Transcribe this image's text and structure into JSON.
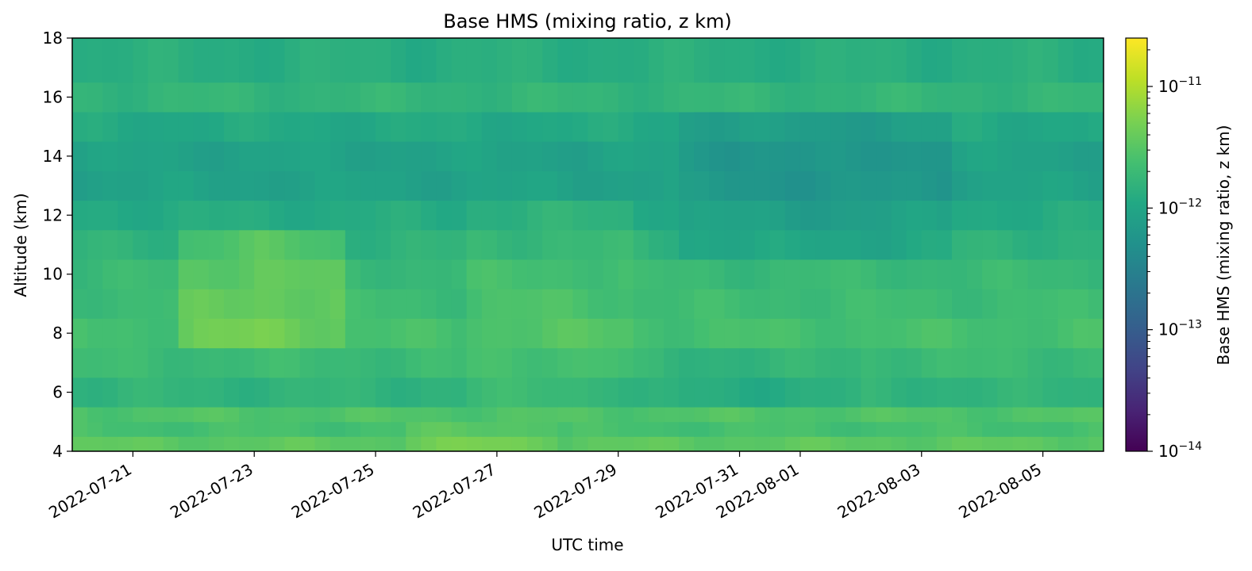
{
  "chart_data": {
    "type": "heatmap",
    "title": "Base HMS (mixing ratio, z km)",
    "xlabel": "UTC time",
    "ylabel": "Altitude (km)",
    "x_ticks": [
      "2022-07-21",
      "2022-07-23",
      "2022-07-25",
      "2022-07-27",
      "2022-07-29",
      "2022-07-31",
      "2022-08-01",
      "2022-08-03",
      "2022-08-05"
    ],
    "xlim": [
      "2022-07-20",
      "2022-08-06"
    ],
    "y_ticks": [
      4,
      6,
      8,
      10,
      12,
      14,
      16,
      18
    ],
    "ylim": [
      4,
      18
    ],
    "colorbar": {
      "label": "Base HMS (mixing ratio, z km)",
      "scale": "log",
      "colormap": "viridis",
      "range": [
        1e-14,
        2.5e-11
      ],
      "ticks": [
        {
          "base": "10",
          "exp": "−11",
          "value": 1e-11
        },
        {
          "base": "10",
          "exp": "−12",
          "value": 1e-12
        },
        {
          "base": "10",
          "exp": "−13",
          "value": 1e-13
        },
        {
          "base": "10",
          "exp": "−14",
          "value": 1e-14
        }
      ]
    },
    "grid": false,
    "approx_exponent_range": [
      -12.35,
      -11.25
    ],
    "altitude_bands_km": [
      {
        "y0": 4.0,
        "y1": 4.5,
        "mean": -11.47
      },
      {
        "y0": 4.5,
        "y1": 5.0,
        "mean": -11.62
      },
      {
        "y0": 5.0,
        "y1": 5.5,
        "mean": -11.55
      },
      {
        "y0": 5.5,
        "y1": 6.5,
        "mean": -11.8
      },
      {
        "y0": 6.5,
        "y1": 7.5,
        "mean": -11.7
      },
      {
        "y0": 7.5,
        "y1": 8.5,
        "mean": -11.62
      },
      {
        "y0": 8.5,
        "y1": 9.5,
        "mean": -11.68
      },
      {
        "y0": 9.5,
        "y1": 10.5,
        "mean": -11.72
      },
      {
        "y0": 10.5,
        "y1": 11.5,
        "mean": -11.82
      },
      {
        "y0": 11.5,
        "y1": 12.5,
        "mean": -11.92
      },
      {
        "y0": 12.5,
        "y1": 13.5,
        "mean": -12.05
      },
      {
        "y0": 13.5,
        "y1": 14.5,
        "mean": -12.05
      },
      {
        "y0": 14.5,
        "y1": 15.5,
        "mean": -11.95
      },
      {
        "y0": 15.5,
        "y1": 16.5,
        "mean": -11.78
      },
      {
        "y0": 16.5,
        "y1": 18.0,
        "mean": -11.88
      }
    ],
    "features": [
      {
        "t0": "2022-07-21T18:00",
        "t1": "2022-07-24T12:00",
        "z0": 7.5,
        "z1": 11.0,
        "delta": 0.3
      },
      {
        "t0": "2022-07-25T12:00",
        "t1": "2022-07-28T00:00",
        "z0": 4.0,
        "z1": 5.0,
        "delta": 0.15
      },
      {
        "t0": "2022-07-26T12:00",
        "t1": "2022-07-29T06:00",
        "z0": 6.0,
        "z1": 12.0,
        "delta": 0.1
      },
      {
        "t0": "2022-07-30T00:00",
        "t1": "2022-08-03T12:00",
        "z0": 10.5,
        "z1": 15.5,
        "delta": -0.2
      },
      {
        "t0": "2022-07-29T00:00",
        "t1": "2022-08-02T00:00",
        "z0": 5.5,
        "z1": 7.5,
        "delta": -0.1
      }
    ]
  }
}
